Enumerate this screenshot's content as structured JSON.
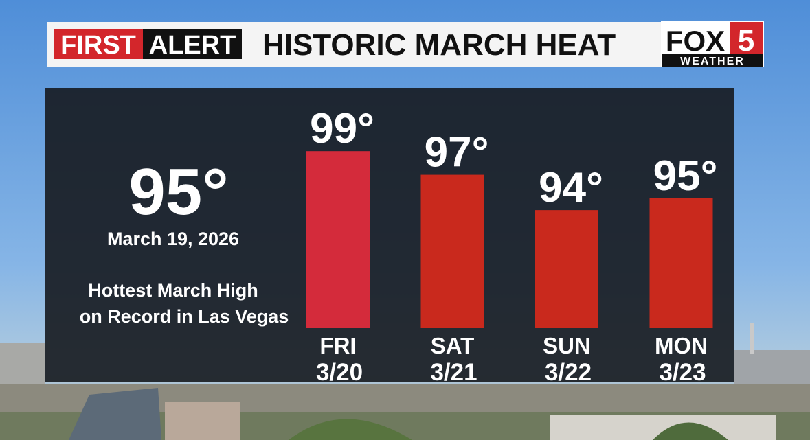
{
  "header": {
    "first": "FIRST",
    "alert": "ALERT",
    "title": "HISTORIC MARCH HEAT"
  },
  "logo": {
    "fox": "FOX",
    "five": "5",
    "weather": "WEATHER"
  },
  "chart_data": {
    "type": "bar",
    "categories": [
      "FRI",
      "SAT",
      "SUN",
      "MON"
    ],
    "dates": [
      "3/20",
      "3/21",
      "3/22",
      "3/23"
    ],
    "values": [
      99,
      97,
      94,
      95
    ],
    "value_labels": [
      "99°",
      "97°",
      "94°",
      "95°"
    ],
    "colors": [
      "#d42b3b",
      "#c9291d",
      "#c9291d",
      "#c9291d"
    ],
    "ylim": [
      84,
      100
    ],
    "annotations": {
      "record": "95°",
      "record_value": 95,
      "date": "March 19, 2026",
      "note": [
        "Hottest March High",
        "on Record in Las Vegas"
      ]
    }
  }
}
